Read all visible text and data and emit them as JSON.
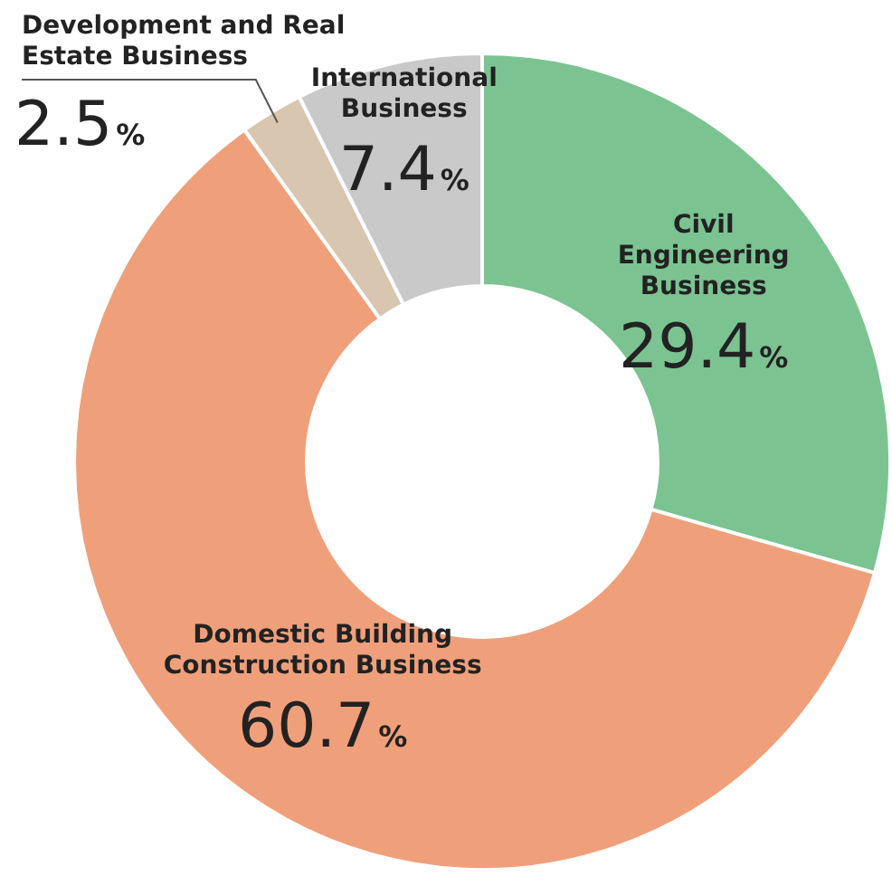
{
  "chart_data": {
    "type": "donut",
    "categories": [
      "Civil Engineering Business",
      "Domestic Building Construction Business",
      "Development and Real Estate Business",
      "International Business"
    ],
    "values": [
      29.4,
      60.7,
      2.5,
      7.4
    ],
    "colors": [
      "#7bc492",
      "#efa07b",
      "#d9c6b0",
      "#c9c9c9"
    ],
    "value_labels": [
      "29.4%",
      "60.7%",
      "2.5%",
      "7.4%"
    ],
    "legend": false
  }
}
